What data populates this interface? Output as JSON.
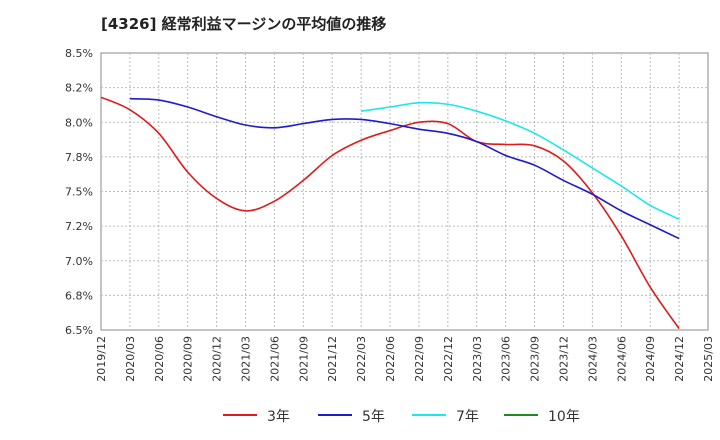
{
  "chart_data": {
    "type": "line",
    "title": "[4326]  経常利益マージンの平均値の推移",
    "x_ticks": [
      "2019/12",
      "2020/03",
      "2020/06",
      "2020/09",
      "2020/12",
      "2021/03",
      "2021/06",
      "2021/09",
      "2021/12",
      "2022/03",
      "2022/06",
      "2022/09",
      "2022/12",
      "2023/03",
      "2023/06",
      "2023/09",
      "2023/12",
      "2024/03",
      "2024/06",
      "2024/09",
      "2024/12",
      "2025/03"
    ],
    "y_ticks": [
      "6.5%",
      "6.8%",
      "7.0%",
      "7.2%",
      "7.5%",
      "7.8%",
      "8.0%",
      "8.2%",
      "8.5%"
    ],
    "ylim": [
      6.5,
      8.5
    ],
    "grid": true,
    "legend_position": "bottom",
    "series": [
      {
        "name": "3年",
        "color": "#dd1c1c",
        "x": [
          "2019/12",
          "2020/03",
          "2020/06",
          "2020/09",
          "2020/12",
          "2021/03",
          "2021/06",
          "2021/09",
          "2021/12",
          "2022/03",
          "2022/06",
          "2022/09",
          "2022/12",
          "2023/03",
          "2023/06",
          "2023/09",
          "2023/12",
          "2024/03",
          "2024/06",
          "2024/09",
          "2024/12"
        ],
        "values": [
          8.18,
          8.09,
          7.92,
          7.64,
          7.45,
          7.36,
          7.43,
          7.58,
          7.76,
          7.87,
          7.94,
          8.0,
          7.99,
          7.86,
          7.84,
          7.83,
          7.72,
          7.49,
          7.18,
          6.81,
          6.51
        ]
      },
      {
        "name": "5年",
        "color": "#1c1ccc",
        "x": [
          "2020/03",
          "2020/06",
          "2020/09",
          "2020/12",
          "2021/03",
          "2021/06",
          "2021/09",
          "2021/12",
          "2022/03",
          "2022/06",
          "2022/09",
          "2022/12",
          "2023/03",
          "2023/06",
          "2023/09",
          "2023/12",
          "2024/03",
          "2024/06",
          "2024/09",
          "2024/12"
        ],
        "values": [
          8.17,
          8.16,
          8.11,
          8.04,
          7.98,
          7.96,
          7.99,
          8.02,
          8.02,
          7.99,
          7.95,
          7.92,
          7.86,
          7.76,
          7.69,
          7.58,
          7.48,
          7.36,
          7.26,
          7.16
        ]
      },
      {
        "name": "7年",
        "color": "#1ce6ee",
        "x": [
          "2022/03",
          "2022/06",
          "2022/09",
          "2022/12",
          "2023/03",
          "2023/06",
          "2023/09",
          "2023/12",
          "2024/03",
          "2024/06",
          "2024/09",
          "2024/12"
        ],
        "values": [
          8.08,
          8.11,
          8.14,
          8.13,
          8.08,
          8.01,
          7.92,
          7.8,
          7.67,
          7.54,
          7.4,
          7.3
        ]
      },
      {
        "name": "10年",
        "color": "#1c8c1c",
        "x": [],
        "values": []
      }
    ]
  }
}
